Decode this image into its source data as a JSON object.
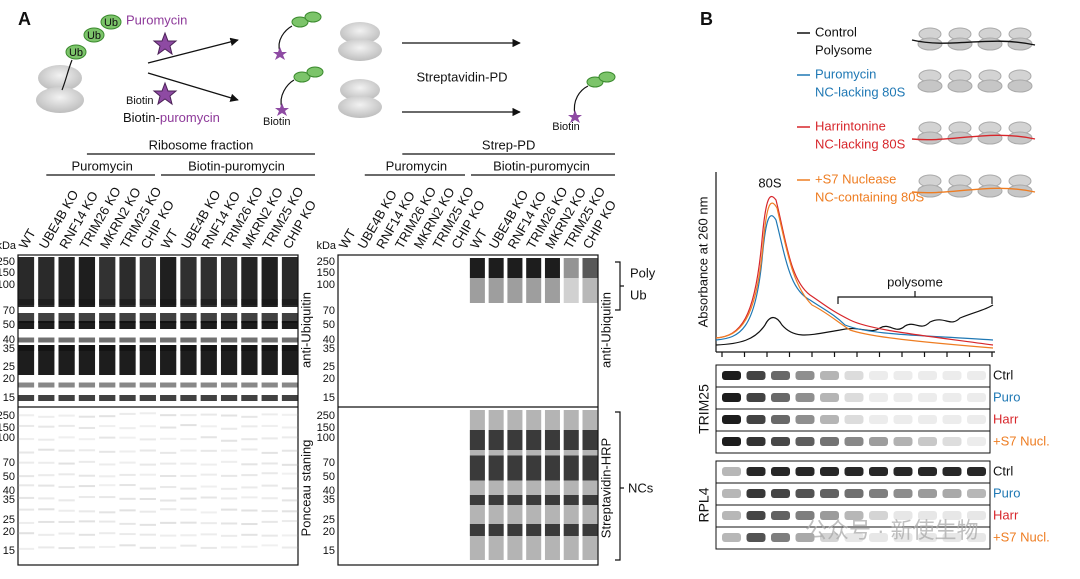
{
  "panel_a": {
    "label": "A",
    "schematic": {
      "ub": [
        "Ub",
        "Ub",
        "Ub"
      ],
      "puromycin": "Puromycin",
      "biotin_left": "Biotin",
      "biotin_puromycin": [
        "Biotin-",
        "puromycin"
      ],
      "biotin_mid": "Biotin",
      "streptavidin_pd": "Streptavidin-PD",
      "biotin_right": "Biotin"
    },
    "left_blot": {
      "title": "Ribosome fraction",
      "groups": [
        "Puromycin",
        "Biotin-puromycin"
      ],
      "lanes": [
        "WT",
        "UBE4B KO",
        "RNF14 KO",
        "TRIM26 KO",
        "MKRN2 KO",
        "TRIM25 KO",
        "CHIP KO",
        "WT",
        "UBE4B KO",
        "RNF14 KO",
        "TRIM26 KO",
        "MKRN2 KO",
        "TRIM25 KO",
        "CHIP KO"
      ],
      "kda": "kDa",
      "markers_top": [
        "250",
        "150",
        "100",
        "70",
        "50",
        "40",
        "35",
        "25",
        "20",
        "15"
      ],
      "markers_bottom": [
        "250",
        "150",
        "100",
        "70",
        "50",
        "40",
        "35",
        "25",
        "20",
        "15"
      ],
      "label_top": "anti-Ubiquitin",
      "label_bottom": "Ponceau staning"
    },
    "right_blot": {
      "title": "Strep-PD",
      "groups": [
        "Puromycin",
        "Biotin-puromycin"
      ],
      "lanes": [
        "WT",
        "UBE4B KO",
        "RNF14 KO",
        "TRIM26 KO",
        "MKRN2 KO",
        "TRIM25 KO",
        "CHIP KO",
        "WT",
        "UBE4B KO",
        "RNF14 KO",
        "TRIM26 KO",
        "MKRN2 KO",
        "TRIM25 KO",
        "CHIP KO"
      ],
      "kda": "kDa",
      "markers_top": [
        "250",
        "150",
        "100",
        "70",
        "50",
        "40",
        "35",
        "25",
        "20",
        "15"
      ],
      "markers_bottom": [
        "250",
        "150",
        "100",
        "70",
        "50",
        "40",
        "35",
        "25",
        "20",
        "15"
      ],
      "label_top": "anti-Ubiquitin",
      "label_bottom": "Streptavidin-HRP",
      "bracket_top": [
        "Poly",
        "Ub"
      ],
      "bracket_bottom": "NCs"
    }
  },
  "panel_b": {
    "label": "B",
    "legend": [
      {
        "name": [
          "Control",
          "Polysome"
        ],
        "color": "#111111"
      },
      {
        "name": [
          "Puromycin",
          "NC-lacking 80S"
        ],
        "color": "#1f78b4"
      },
      {
        "name": [
          "Harrintonine",
          "NC-lacking 80S"
        ],
        "color": "#d7262b"
      },
      {
        "name": [
          "+S7 Nuclease",
          "NC-containing 80S"
        ],
        "color": "#ee7d22"
      }
    ],
    "profile": {
      "y_label": "Absorbance at 260 nm",
      "peak_label": "80S",
      "region_label": "polysome"
    },
    "blots": [
      {
        "protein": "TRIM25",
        "rows": [
          "Ctrl",
          "Puro",
          "Harr",
          "+S7 Nucl."
        ]
      },
      {
        "protein": "RPL4",
        "rows": [
          "Ctrl",
          "Puro",
          "Harr",
          "+S7 Nucl."
        ]
      }
    ],
    "watermark": "公众号 · 新使生物"
  }
}
